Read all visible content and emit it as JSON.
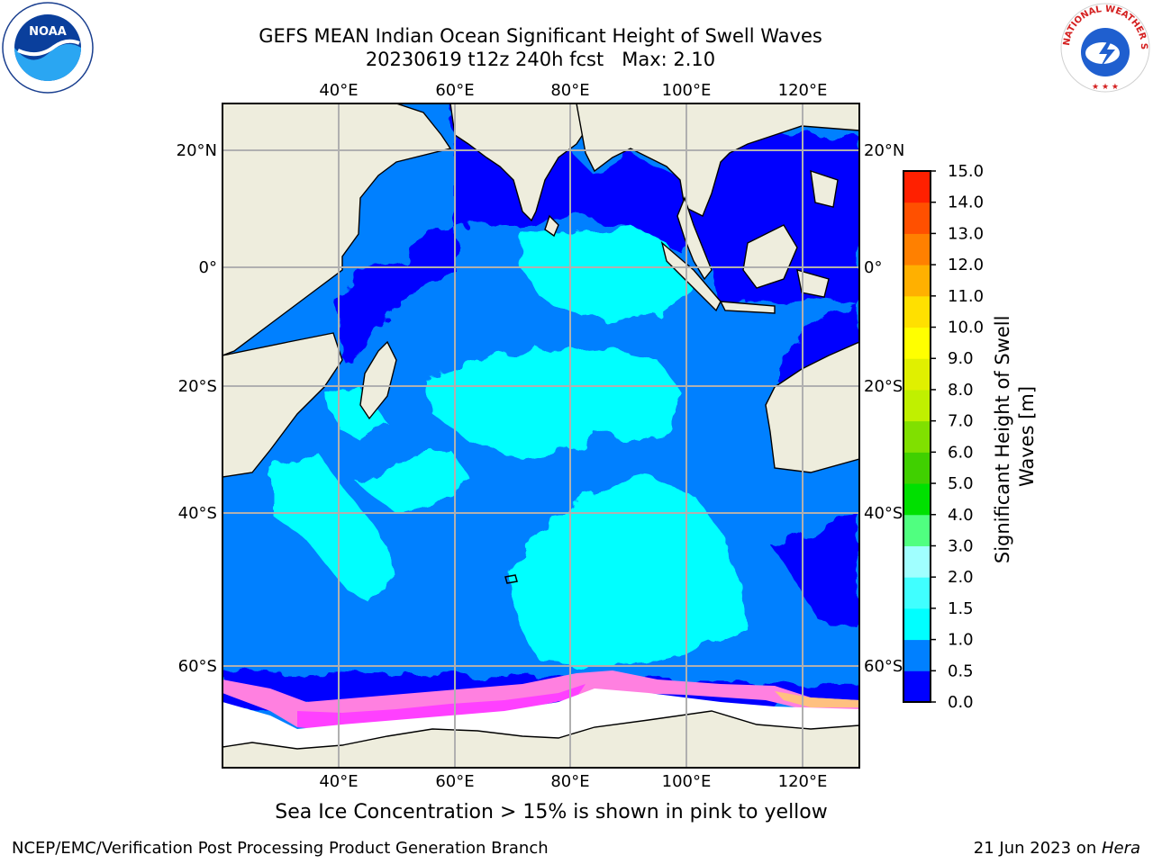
{
  "title": {
    "line1": "GEFS MEAN Indian Ocean Significant Height of Swell Waves",
    "line2": "20230619 t12z 240h fcst   Max: 2.10"
  },
  "logos": {
    "left": {
      "icon": "noaa-logo",
      "text": "NOAA"
    },
    "right": {
      "icon": "national-weather-service-logo",
      "text": "NATIONAL WEATHER SERVICE"
    }
  },
  "map": {
    "region": "Indian Ocean",
    "lon_ticks": [
      "40°E",
      "60°E",
      "80°E",
      "100°E",
      "120°E"
    ],
    "lat_ticks": [
      "20°N",
      "0°",
      "20°S",
      "40°S",
      "60°S"
    ],
    "colors": {
      "land": "#eeeddd",
      "sea_ice": "#ffffff",
      "grid": "#b0b0b0",
      "coast": "#000000"
    }
  },
  "colorbar": {
    "label": "Significant Height of Swell Waves [m]",
    "ticks": [
      "0.0",
      "0.5",
      "1.0",
      "1.5",
      "2.0",
      "3.0",
      "4.0",
      "5.0",
      "6.0",
      "7.0",
      "8.0",
      "9.0",
      "10.0",
      "11.0",
      "12.0",
      "13.0",
      "14.0",
      "15.0"
    ],
    "colors": [
      "#0000ff",
      "#0080ff",
      "#00ffff",
      "#40ffff",
      "#a0ffff",
      "#50ff80",
      "#00e000",
      "#40d000",
      "#80e000",
      "#c0f000",
      "#e0f000",
      "#ffff00",
      "#ffe000",
      "#ffb000",
      "#ff8000",
      "#ff5000",
      "#ff2000"
    ]
  },
  "note": "Sea Ice Concentration > 15% is shown in pink to yellow",
  "footer": {
    "left": "NCEP/EMC/Verification Post Processing Product Generation Branch",
    "right_date": "21 Jun 2023 on ",
    "right_host": "Hera"
  }
}
